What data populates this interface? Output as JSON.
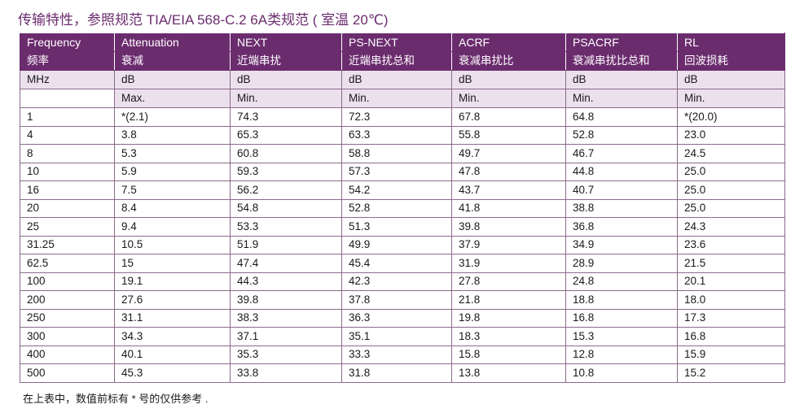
{
  "title": "传输特性，参照规范 TIA/EIA 568-C.2 6A类规范 ( 室温 20℃)",
  "columns": [
    {
      "en": "Frequency",
      "cn": "频率",
      "unit": "MHz",
      "limit": ""
    },
    {
      "en": "Attenuation",
      "cn": "衰减",
      "unit": "dB",
      "limit": "Max."
    },
    {
      "en": "NEXT",
      "cn": "近端串扰",
      "unit": "dB",
      "limit": "Min."
    },
    {
      "en": "PS-NEXT",
      "cn": "近端串扰总和",
      "unit": "dB",
      "limit": "Min."
    },
    {
      "en": "ACRF",
      "cn": "衰减串扰比",
      "unit": "dB",
      "limit": "Min."
    },
    {
      "en": "PSACRF",
      "cn": "衰减串扰比总和",
      "unit": "dB",
      "limit": "Min."
    },
    {
      "en": "RL",
      "cn": "回波损耗",
      "unit": "dB",
      "limit": "Min."
    }
  ],
  "rows": [
    [
      "1",
      "*(2.1)",
      "74.3",
      "72.3",
      "67.8",
      "64.8",
      "*(20.0)"
    ],
    [
      "4",
      "3.8",
      "65.3",
      "63.3",
      "55.8",
      "52.8",
      "23.0"
    ],
    [
      "8",
      "5.3",
      "60.8",
      "58.8",
      "49.7",
      "46.7",
      "24.5"
    ],
    [
      "10",
      "5.9",
      "59.3",
      "57.3",
      "47.8",
      "44.8",
      "25.0"
    ],
    [
      "16",
      "7.5",
      "56.2",
      "54.2",
      "43.7",
      "40.7",
      "25.0"
    ],
    [
      "20",
      "8.4",
      "54.8",
      "52.8",
      "41.8",
      "38.8",
      "25.0"
    ],
    [
      "25",
      "9.4",
      "53.3",
      "51.3",
      "39.8",
      "36.8",
      "24.3"
    ],
    [
      "31.25",
      "10.5",
      "51.9",
      "49.9",
      "37.9",
      "34.9",
      "23.6"
    ],
    [
      "62.5",
      "15",
      "47.4",
      "45.4",
      "31.9",
      "28.9",
      "21.5"
    ],
    [
      "100",
      "19.1",
      "44.3",
      "42.3",
      "27.8",
      "24.8",
      "20.1"
    ],
    [
      "200",
      "27.6",
      "39.8",
      "37.8",
      "21.8",
      "18.8",
      "18.0"
    ],
    [
      "250",
      "31.1",
      "38.3",
      "36.3",
      "19.8",
      "16.8",
      "17.3"
    ],
    [
      "300",
      "34.3",
      "37.1",
      "35.1",
      "18.3",
      "15.3",
      "16.8"
    ],
    [
      "400",
      "40.1",
      "35.3",
      "33.3",
      "15.8",
      "12.8",
      "15.9"
    ],
    [
      "500",
      "45.3",
      "33.8",
      "31.8",
      "13.8",
      "10.8",
      "15.2"
    ]
  ],
  "note": "在上表中，数值前标有 * 号的仅供参考 .",
  "colors": {
    "header_bg": "#6b2c6e",
    "subheader_bg": "#ece0ec",
    "title": "#6b2c6e"
  }
}
